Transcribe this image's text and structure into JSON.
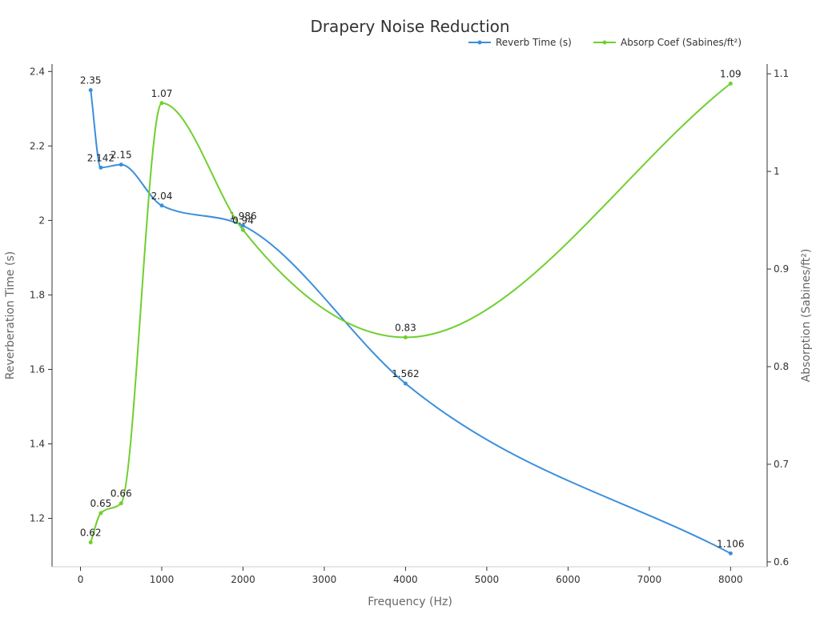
{
  "chart_data": {
    "type": "line",
    "title": "Drapery Noise Reduction",
    "xlabel": "Frequency (Hz)",
    "ylabel": "Reverberation Time (s)",
    "y2label": "Absorption (Sabines/ft²)",
    "xlim": [
      -350,
      8450
    ],
    "ylim": [
      1.07,
      2.42
    ],
    "y2lim": [
      0.595,
      1.11
    ],
    "x_ticks": [
      0,
      1000,
      2000,
      3000,
      4000,
      5000,
      6000,
      7000,
      8000
    ],
    "y_ticks": [
      1.2,
      1.4,
      1.6,
      1.8,
      2.0,
      2.2,
      2.4
    ],
    "y_tick_labels": [
      "1.2",
      "1.4",
      "1.6",
      "1.8",
      "2",
      "2.2",
      "2.4"
    ],
    "y2_ticks": [
      0.6,
      0.7,
      0.8,
      0.9,
      1.0,
      1.1
    ],
    "y2_tick_labels": [
      "0.6",
      "0.7",
      "0.8",
      "0.9",
      "1",
      "1.1"
    ],
    "legend_position": "top-right",
    "grid": false,
    "series": [
      {
        "name": "Reverb Time (s)",
        "axis": "left",
        "color": "#3b8fdb",
        "x": [
          125,
          250,
          500,
          1000,
          2000,
          4000,
          8000
        ],
        "values": [
          2.35,
          2.142,
          2.15,
          2.04,
          1.986,
          1.562,
          1.106
        ],
        "labels": [
          "2.35",
          "2.142",
          "2.15",
          "2.04",
          "1.986",
          "1.562",
          "1.106"
        ]
      },
      {
        "name": "Absorp Coef (Sabines/ft²)",
        "axis": "right",
        "color": "#6fcf2f",
        "x": [
          125,
          250,
          500,
          1000,
          2000,
          4000,
          8000
        ],
        "values": [
          0.62,
          0.65,
          0.66,
          1.07,
          0.94,
          0.83,
          1.09
        ],
        "labels": [
          "0.62",
          "0.65",
          "0.66",
          "1.07",
          "0.94",
          "0.83",
          "1.09"
        ]
      }
    ]
  }
}
